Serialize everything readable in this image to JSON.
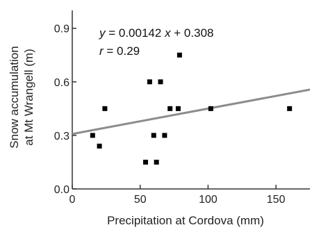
{
  "chart_data": {
    "type": "scatter",
    "title": "",
    "xlabel": "Precipitation at Cordova (mm)",
    "ylabel_line1": "Snow accumulation",
    "ylabel_line2": "at Mt  Wrangell (m)",
    "xlim": [
      0,
      175
    ],
    "ylim": [
      0,
      1.0
    ],
    "xticks": [
      "0",
      "50",
      "100",
      "150"
    ],
    "xtick_values": [
      0,
      50,
      100,
      150
    ],
    "yticks": [
      "0.0",
      "0.3",
      "0.6",
      "0.9"
    ],
    "ytick_values": [
      0.0,
      0.3,
      0.6,
      0.9
    ],
    "grid": false,
    "points": [
      {
        "x": 15,
        "y": 0.3
      },
      {
        "x": 20,
        "y": 0.24
      },
      {
        "x": 24,
        "y": 0.45
      },
      {
        "x": 54,
        "y": 0.15
      },
      {
        "x": 57,
        "y": 0.6
      },
      {
        "x": 60,
        "y": 0.3
      },
      {
        "x": 62,
        "y": 0.15
      },
      {
        "x": 65,
        "y": 0.6
      },
      {
        "x": 68,
        "y": 0.3
      },
      {
        "x": 72,
        "y": 0.45
      },
      {
        "x": 78,
        "y": 0.45
      },
      {
        "x": 79,
        "y": 0.75
      },
      {
        "x": 102,
        "y": 0.45
      },
      {
        "x": 160,
        "y": 0.45
      }
    ],
    "fit": {
      "slope": 0.00142,
      "intercept": 0.308,
      "color": "#8c8c8c"
    },
    "equation": {
      "y": "y",
      "rest": " = 0.00142",
      "x": "x",
      "tail": " + 0.308"
    },
    "r_stat": {
      "r": "r",
      "rest": " = 0.29"
    },
    "marker_color": "#000000"
  }
}
